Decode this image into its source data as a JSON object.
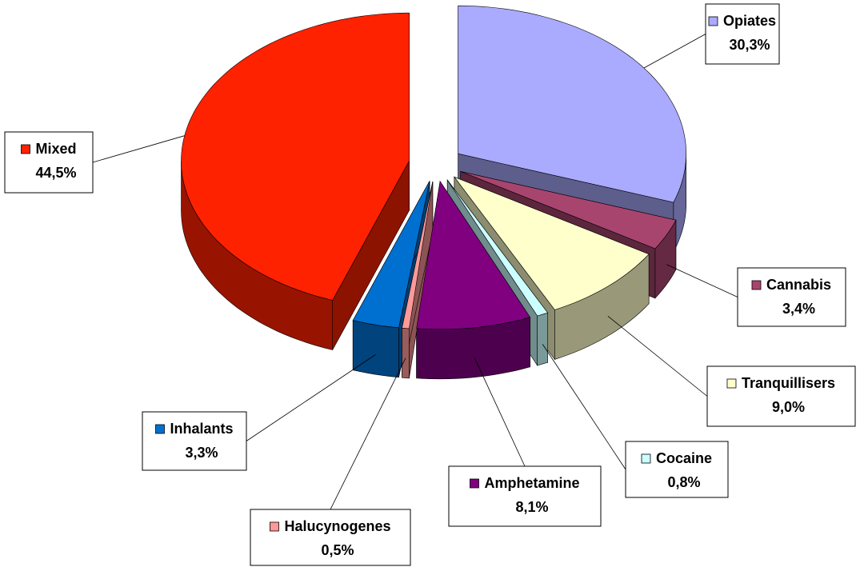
{
  "chart_data": {
    "type": "pie",
    "categories": [
      "Opiates",
      "Cannabis",
      "Tranquillisers",
      "Cocaine",
      "Amphetamine",
      "Halucynogenes",
      "Inhalants",
      "Mixed"
    ],
    "values": [
      30.3,
      3.4,
      9.0,
      0.8,
      8.1,
      0.5,
      3.3,
      44.5
    ],
    "value_labels": [
      "30,3%",
      "3,4%",
      "9,0%",
      "0,8%",
      "8,1%",
      "0,5%",
      "3,3%",
      "44,5%"
    ],
    "colors": [
      "#aaaaff",
      "#a8456f",
      "#ffffcc",
      "#ccffff",
      "#800080",
      "#ff9999",
      "#0070d0",
      "#ff2200"
    ]
  }
}
